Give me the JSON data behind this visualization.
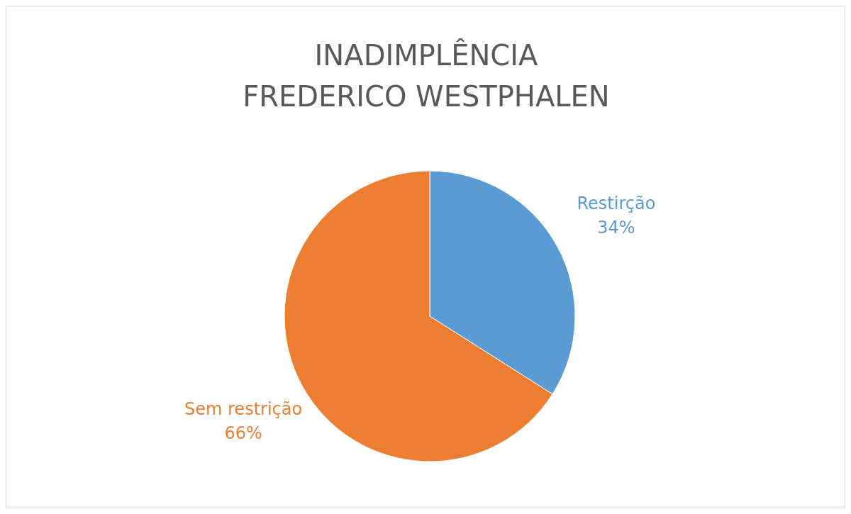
{
  "chart_data": {
    "type": "pie",
    "title": "INADIMPLÊNCIA\nFREDERICO WESTPHALEN",
    "categories": [
      "Restirção",
      "Sem restrição"
    ],
    "values": [
      34,
      66
    ],
    "colors": [
      "#5b9bd5",
      "#ed7d31"
    ],
    "value_labels": [
      "34%",
      "66%"
    ],
    "legend": false
  }
}
